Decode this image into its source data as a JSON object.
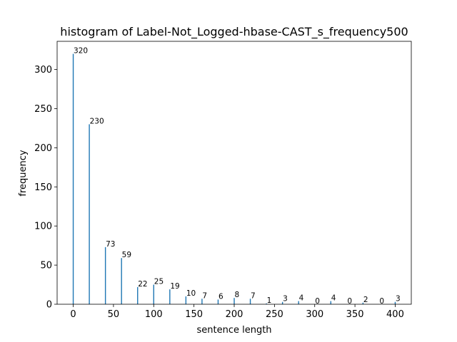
{
  "chart_data": {
    "type": "bar",
    "title": "histogram of Label-Not_Logged-hbase-CAST_s_frequency500",
    "xlabel": "sentence length",
    "ylabel": "frequency",
    "x": [
      0,
      20,
      40,
      60,
      80,
      100,
      120,
      140,
      160,
      180,
      200,
      220,
      240,
      260,
      280,
      300,
      320,
      340,
      360,
      380,
      400
    ],
    "values": [
      320,
      230,
      73,
      59,
      22,
      25,
      19,
      10,
      7,
      6,
      8,
      7,
      1,
      3,
      4,
      0,
      4,
      0,
      2,
      0,
      3
    ],
    "xlim": [
      -20,
      420
    ],
    "ylim": [
      0,
      336
    ],
    "xticks": [
      0,
      50,
      100,
      150,
      200,
      250,
      300,
      350,
      400
    ],
    "yticks": [
      0,
      50,
      100,
      150,
      200,
      250,
      300
    ],
    "bar_color": "#1f77b4",
    "grid": false
  }
}
